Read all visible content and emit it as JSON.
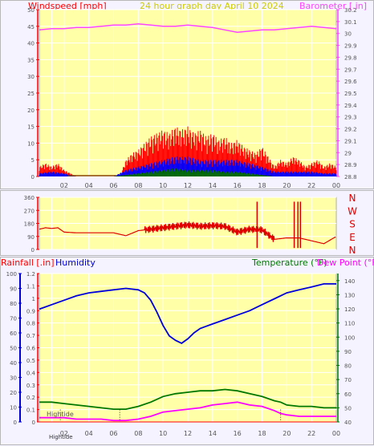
{
  "colors": {
    "plot_bg": "#ffffa8",
    "grid": "#ffffff",
    "tick_text": "#555555",
    "wind": "#ff0000",
    "wind_avg": "#0000ff",
    "wind_low": "#007000",
    "barometer": "#ff44ff",
    "direction": "#e00000",
    "humidity": "#0000dd",
    "temperature": "#007700",
    "dewpoint": "#ff00ff",
    "rain": "#ff0000",
    "title": "#cccc00"
  },
  "header": {
    "windspeed_label": "Windspeed [mph]",
    "title": "24 hour graph day   April 10 2024",
    "barometer_label": "Barometer [.in]"
  },
  "direction_panel": {
    "compass": [
      "N",
      "W",
      "S",
      "E",
      "N"
    ]
  },
  "lower_header": {
    "rainfall_label": "Rainfall [.in]",
    "humidity_label": "Humidity",
    "temperature_label": "Temperature (°F)",
    "dewpoint_label": "Dew Point (°F)"
  },
  "annotations": {
    "hightide_top": "Hightide",
    "hightide_bottom": "Hightide"
  },
  "chart_data": [
    {
      "type": "line",
      "title": "24 hour graph day   April 10 2024",
      "x_ticks": [
        "02",
        "04",
        "06",
        "08",
        "10",
        "12",
        "14",
        "16",
        "18",
        "20",
        "22",
        "00"
      ],
      "xlim": [
        0,
        24
      ],
      "y_left": {
        "label": "Windspeed [mph]",
        "lim": [
          0,
          50
        ],
        "ticks": [
          0,
          5,
          10,
          15,
          20,
          25,
          30,
          35,
          40,
          45,
          50
        ]
      },
      "y_right": {
        "label": "Barometer [.in]",
        "lim": [
          28.8,
          30.2
        ],
        "ticks": [
          28.8,
          28.9,
          29,
          29.1,
          29.2,
          29.3,
          29.4,
          29.5,
          29.6,
          29.7,
          29.8,
          29.9,
          30,
          30.1,
          30.2
        ]
      },
      "series": [
        {
          "name": "Barometer [.in]",
          "axis": "right",
          "x": [
            0,
            1,
            2,
            3,
            4,
            5,
            6,
            7,
            8,
            9,
            10,
            11,
            12,
            13,
            14,
            15,
            16,
            17,
            18,
            19,
            20,
            21,
            22,
            23,
            24
          ],
          "values": [
            30.03,
            30.04,
            30.04,
            30.05,
            30.05,
            30.06,
            30.07,
            30.07,
            30.08,
            30.07,
            30.06,
            30.06,
            30.07,
            30.06,
            30.05,
            30.03,
            30.01,
            30.02,
            30.03,
            30.03,
            30.04,
            30.05,
            30.06,
            30.05,
            30.04
          ]
        },
        {
          "name": "wind gust",
          "axis": "left",
          "x": [
            0,
            0.5,
            1,
            1.5,
            2,
            3,
            4,
            5,
            6,
            6.5,
            7,
            7.5,
            8,
            8.5,
            9,
            9.5,
            10,
            10.5,
            11,
            11.5,
            12,
            12.5,
            13,
            13.5,
            14,
            14.5,
            15,
            15.5,
            16,
            16.5,
            17,
            17.5,
            18,
            18.5,
            19,
            19.5,
            20,
            20.5,
            21,
            21.5,
            22,
            22.5,
            23,
            23.5,
            24
          ],
          "values": [
            3,
            4,
            3,
            4,
            2,
            0,
            0,
            0,
            0,
            0,
            5,
            7,
            8,
            10,
            12,
            13,
            14,
            13,
            15,
            14,
            15,
            13,
            14,
            12,
            13,
            11,
            12,
            10,
            11,
            9,
            8,
            7,
            9,
            6,
            3,
            5,
            4,
            6,
            5,
            3,
            4,
            5,
            3,
            4,
            3
          ]
        },
        {
          "name": "wind avg",
          "axis": "left",
          "x": [
            0,
            1,
            2,
            3,
            6,
            7,
            8,
            9,
            10,
            11,
            12,
            13,
            14,
            15,
            16,
            17,
            18,
            19,
            20,
            21,
            22,
            23,
            24
          ],
          "values": [
            1,
            1.5,
            1,
            0,
            0,
            2,
            3,
            4,
            5,
            6,
            6,
            5,
            5,
            5,
            5,
            4,
            3,
            1.5,
            1.5,
            1.5,
            1.5,
            1,
            1
          ]
        },
        {
          "name": "wind low",
          "axis": "left",
          "x": [
            0,
            6,
            7,
            8,
            9,
            10,
            11,
            12,
            13,
            14,
            15,
            16,
            17,
            18,
            19,
            20,
            24
          ],
          "values": [
            0,
            0,
            0.5,
            1,
            1.5,
            2,
            2.5,
            2,
            2,
            2,
            1.5,
            1.5,
            1,
            0.5,
            0,
            0,
            0
          ]
        }
      ]
    },
    {
      "type": "line",
      "x_ticks": [
        "02",
        "04",
        "06",
        "08",
        "10",
        "12",
        "14",
        "16",
        "18",
        "20",
        "22",
        "00"
      ],
      "xlim": [
        0,
        24
      ],
      "y_left": {
        "lim": [
          0,
          360
        ],
        "ticks": [
          0,
          90,
          180,
          270,
          360
        ]
      },
      "y_right": {
        "labels": [
          "N",
          "W",
          "S",
          "E",
          "N"
        ]
      },
      "series": [
        {
          "name": "wind direction",
          "x": [
            0,
            0.5,
            1,
            1.5,
            2,
            3,
            4,
            5,
            6,
            7,
            8,
            9,
            10,
            11,
            12,
            13,
            14,
            15,
            16,
            17,
            18,
            19,
            20,
            21,
            22,
            23,
            24
          ],
          "values": [
            140,
            150,
            145,
            150,
            120,
            115,
            115,
            115,
            115,
            95,
            130,
            140,
            150,
            160,
            170,
            160,
            165,
            160,
            120,
            140,
            135,
            70,
            80,
            80,
            60,
            40,
            90
          ]
        }
      ]
    },
    {
      "type": "line",
      "x_ticks": [
        "02",
        "04",
        "06",
        "08",
        "10",
        "12",
        "14",
        "16",
        "18",
        "20",
        "22",
        "00"
      ],
      "xlim": [
        0,
        24
      ],
      "y_left_humidity": {
        "lim": [
          0,
          100
        ],
        "ticks": [
          0,
          10,
          20,
          30,
          40,
          50,
          60,
          70,
          80,
          90,
          100
        ]
      },
      "y_left_rain": {
        "label": "Rainfall [.in]",
        "lim": [
          0,
          1.2
        ],
        "ticks": [
          0,
          0.1,
          0.2,
          0.3,
          0.4,
          0.5,
          0.6,
          0.7,
          0.8,
          0.9,
          1,
          1.1,
          1.2
        ]
      },
      "y_right": {
        "label": "Temperature (°F)",
        "lim": [
          40,
          145
        ],
        "ticks": [
          40,
          50,
          60,
          70,
          80,
          90,
          100,
          110,
          120,
          130,
          140
        ]
      },
      "series": [
        {
          "name": "Humidity",
          "axis": "humidity",
          "x": [
            0,
            1,
            2,
            3,
            4,
            5,
            6,
            7,
            8,
            8.5,
            9,
            9.5,
            10,
            10.5,
            11,
            11.5,
            12,
            12.5,
            13,
            14,
            15,
            16,
            17,
            18,
            19,
            20,
            21,
            22,
            23,
            24
          ],
          "values": [
            76,
            79,
            82,
            85,
            87,
            88,
            89,
            90,
            89,
            87,
            82,
            74,
            65,
            58,
            55,
            53,
            56,
            60,
            63,
            66,
            69,
            72,
            75,
            79,
            83,
            87,
            89,
            91,
            93,
            93
          ]
        },
        {
          "name": "Temperature (°F)",
          "axis": "right",
          "x": [
            0,
            1,
            2,
            3,
            4,
            5,
            6,
            7,
            8,
            9,
            10,
            11,
            12,
            13,
            14,
            15,
            16,
            17,
            18,
            19,
            19.5,
            20,
            21,
            22,
            23,
            24
          ],
          "values": [
            54,
            54,
            53,
            52,
            51,
            50,
            49,
            49,
            51,
            54,
            58,
            60,
            61,
            62,
            62,
            63,
            62,
            60,
            58,
            55,
            54,
            52,
            51,
            51,
            50,
            50
          ]
        },
        {
          "name": "Dew Point (°F)",
          "axis": "right",
          "x": [
            0,
            1,
            2,
            3,
            4,
            5,
            6,
            7,
            8,
            9,
            10,
            11,
            12,
            13,
            14,
            15,
            16,
            17,
            18,
            19,
            19.5,
            20,
            21,
            22,
            23,
            24
          ],
          "values": [
            43,
            43,
            43,
            42,
            42,
            42,
            41,
            41,
            42,
            44,
            47,
            48,
            49,
            50,
            52,
            53,
            54,
            52,
            51,
            48,
            46,
            45,
            44,
            44,
            44,
            44
          ]
        },
        {
          "name": "Rainfall [.in]",
          "axis": "rain",
          "x": [
            0,
            24
          ],
          "values": [
            0,
            0
          ]
        }
      ],
      "tide_markers_hours": [
        1.7,
        6.5,
        19.5
      ]
    }
  ]
}
